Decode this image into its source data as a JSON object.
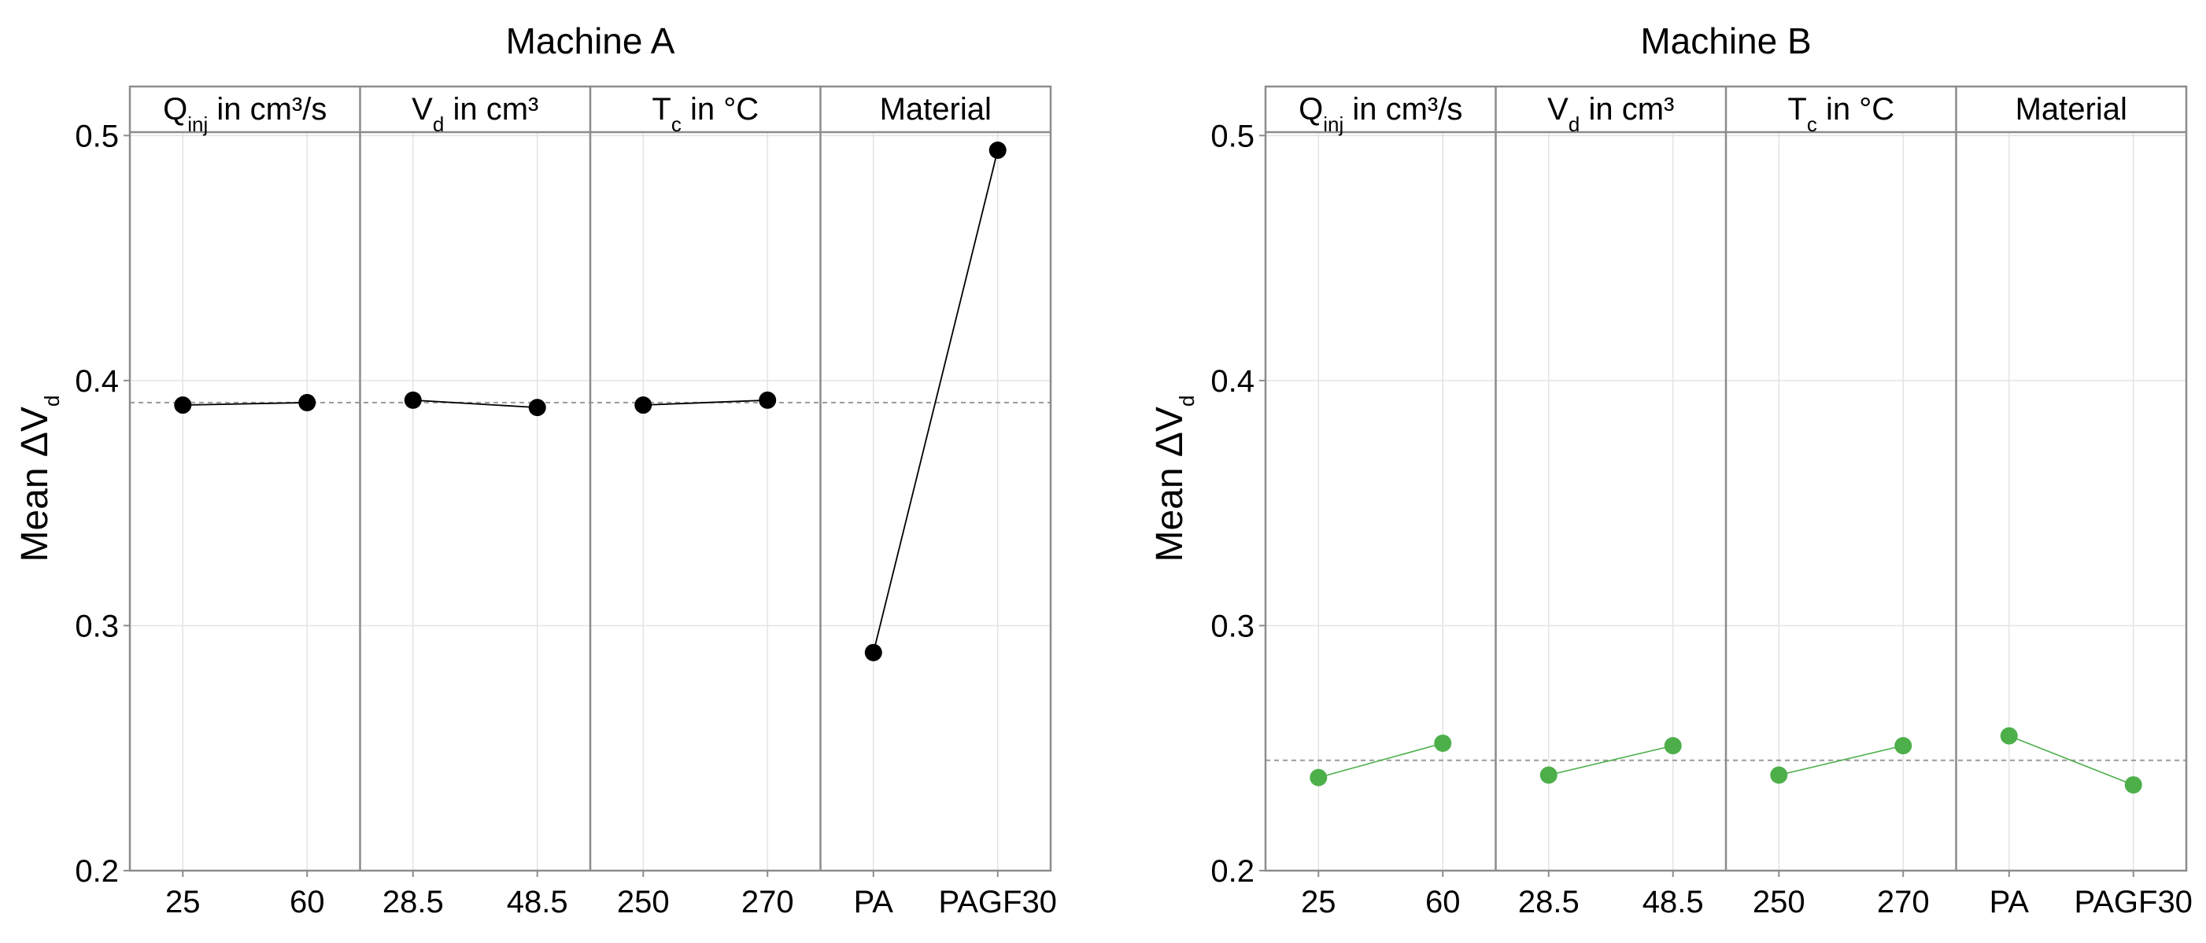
{
  "chart_data": [
    {
      "type": "line",
      "title": "Machine A",
      "ylabel": {
        "main": "Mean ΔV",
        "sub": "d"
      },
      "ylim": [
        0.2,
        0.52
      ],
      "yticks": [
        {
          "value": 0.2,
          "label": "0.2"
        },
        {
          "value": 0.3,
          "label": "0.3"
        },
        {
          "value": 0.4,
          "label": "0.4"
        },
        {
          "value": 0.5,
          "label": "0.5"
        }
      ],
      "grand_mean": 0.391,
      "color": "#000000",
      "facets": [
        {
          "label": {
            "main": "Q",
            "sub": "inj",
            "rest": " in cm³/s"
          },
          "levels": [
            "25",
            "60"
          ],
          "values": [
            0.39,
            0.391
          ]
        },
        {
          "label": {
            "main": "V",
            "sub": "d",
            "rest": " in cm³"
          },
          "levels": [
            "28.5",
            "48.5"
          ],
          "values": [
            0.392,
            0.389
          ]
        },
        {
          "label": {
            "main": "T",
            "sub": "c",
            "rest": " in °C"
          },
          "levels": [
            "250",
            "270"
          ],
          "values": [
            0.39,
            0.392
          ]
        },
        {
          "label": {
            "main": "Material",
            "sub": "",
            "rest": ""
          },
          "levels": [
            "PA",
            "PAGF30"
          ],
          "values": [
            0.289,
            0.494
          ]
        }
      ]
    },
    {
      "type": "line",
      "title": "Machine B",
      "ylabel": {
        "main": "Mean ΔV",
        "sub": "d"
      },
      "ylim": [
        0.2,
        0.52
      ],
      "yticks": [
        {
          "value": 0.2,
          "label": "0.2"
        },
        {
          "value": 0.3,
          "label": "0.3"
        },
        {
          "value": 0.4,
          "label": "0.4"
        },
        {
          "value": 0.5,
          "label": "0.5"
        }
      ],
      "grand_mean": 0.245,
      "color": "#4daf4a",
      "facets": [
        {
          "label": {
            "main": "Q",
            "sub": "inj",
            "rest": " in cm³/s"
          },
          "levels": [
            "25",
            "60"
          ],
          "values": [
            0.238,
            0.252
          ]
        },
        {
          "label": {
            "main": "V",
            "sub": "d",
            "rest": " in cm³"
          },
          "levels": [
            "28.5",
            "48.5"
          ],
          "values": [
            0.239,
            0.251
          ]
        },
        {
          "label": {
            "main": "T",
            "sub": "c",
            "rest": " in °C"
          },
          "levels": [
            "250",
            "270"
          ],
          "values": [
            0.239,
            0.251
          ]
        },
        {
          "label": {
            "main": "Material",
            "sub": "",
            "rest": ""
          },
          "levels": [
            "PA",
            "PAGF30"
          ],
          "values": [
            0.255,
            0.235
          ]
        }
      ]
    }
  ]
}
